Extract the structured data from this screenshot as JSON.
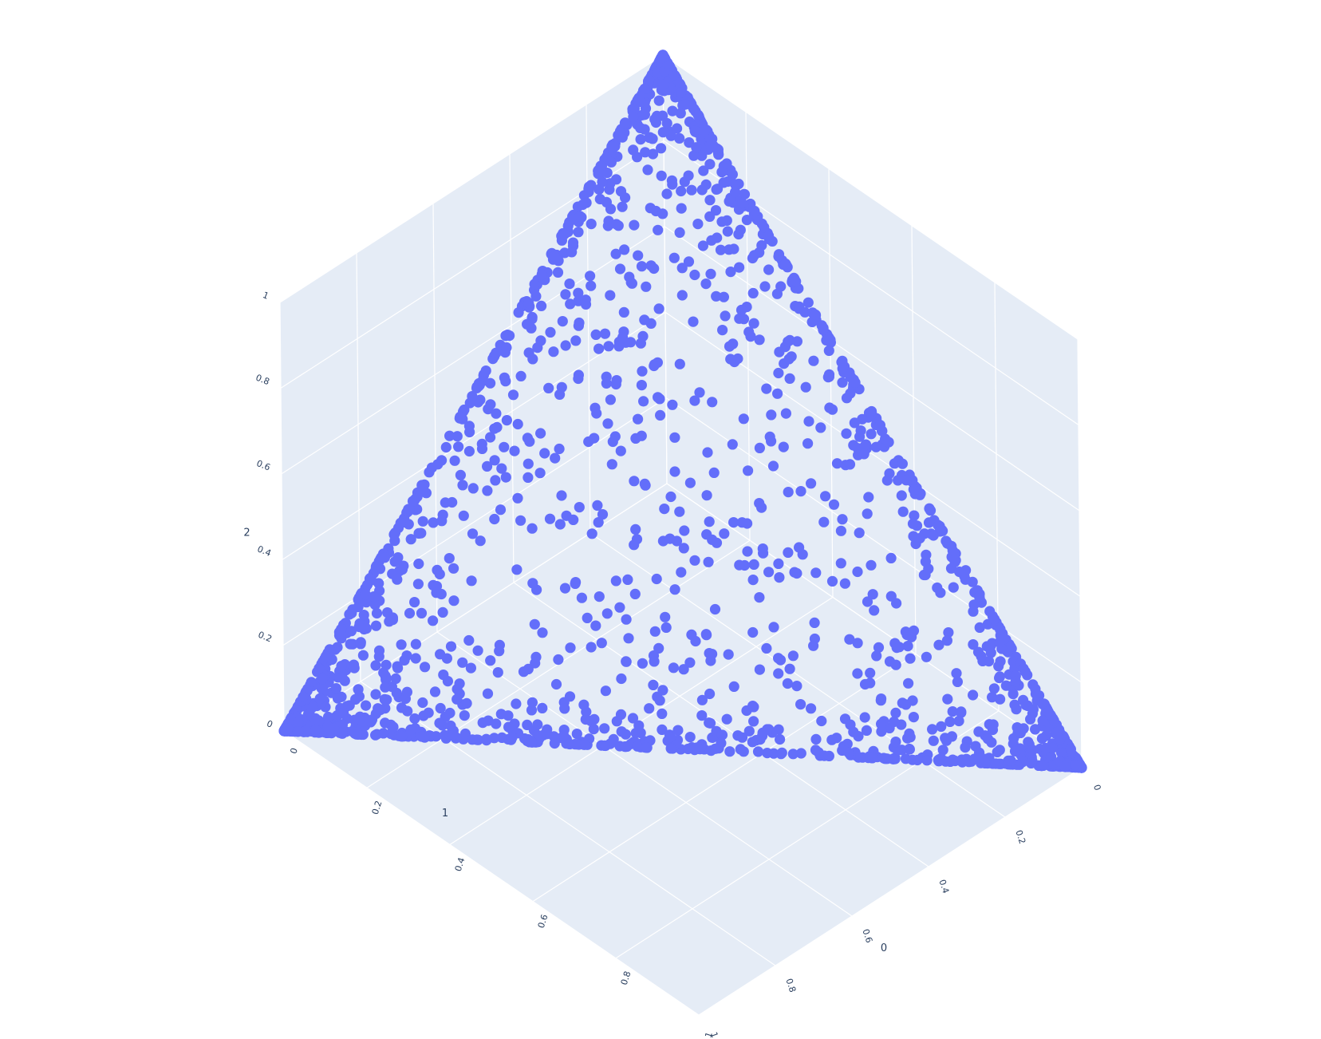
{
  "chart_data": {
    "type": "scatter",
    "subtype": "scatter3d",
    "title": "",
    "axes": {
      "x": {
        "title": "0",
        "range": [
          0,
          1
        ],
        "ticks": [
          "0",
          "0.2",
          "0.4",
          "0.6",
          "0.8",
          "1"
        ]
      },
      "y": {
        "title": "1",
        "range": [
          0,
          1
        ],
        "ticks": [
          "0",
          "0.2",
          "0.4",
          "0.6",
          "0.8",
          "1"
        ]
      },
      "z": {
        "title": "2",
        "range": [
          0,
          1
        ],
        "ticks": [
          "0",
          "0.2",
          "0.4",
          "0.6",
          "0.8",
          "1"
        ]
      }
    },
    "grid": true,
    "legend": "none",
    "marker_color": "#636efa",
    "pane_color": "#e5ecf6",
    "grid_color": "#ffffff",
    "text_color": "#2a3f5f",
    "approx_point_count": 2000,
    "distribution": "points on the simplex x+y+z=1, concentrated near the three vertices and along the edges",
    "points_sample": [
      [
        0.97,
        0.02,
        0.01
      ],
      [
        0.95,
        0.03,
        0.02
      ],
      [
        0.93,
        0.05,
        0.02
      ],
      [
        0.9,
        0.06,
        0.04
      ],
      [
        0.88,
        0.1,
        0.02
      ],
      [
        0.86,
        0.04,
        0.1
      ],
      [
        0.8,
        0.15,
        0.05
      ],
      [
        0.75,
        0.2,
        0.05
      ],
      [
        0.7,
        0.05,
        0.25
      ],
      [
        0.65,
        0.3,
        0.05
      ],
      [
        0.02,
        0.97,
        0.01
      ],
      [
        0.03,
        0.95,
        0.02
      ],
      [
        0.05,
        0.92,
        0.03
      ],
      [
        0.07,
        0.9,
        0.03
      ],
      [
        0.1,
        0.86,
        0.04
      ],
      [
        0.04,
        0.88,
        0.08
      ],
      [
        0.15,
        0.8,
        0.05
      ],
      [
        0.2,
        0.75,
        0.05
      ],
      [
        0.05,
        0.7,
        0.25
      ],
      [
        0.3,
        0.65,
        0.05
      ],
      [
        0.01,
        0.02,
        0.97
      ],
      [
        0.02,
        0.03,
        0.95
      ],
      [
        0.03,
        0.05,
        0.92
      ],
      [
        0.05,
        0.06,
        0.89
      ],
      [
        0.08,
        0.04,
        0.88
      ],
      [
        0.1,
        0.1,
        0.8
      ],
      [
        0.05,
        0.2,
        0.75
      ],
      [
        0.2,
        0.05,
        0.75
      ],
      [
        0.25,
        0.1,
        0.65
      ],
      [
        0.1,
        0.3,
        0.6
      ],
      [
        0.5,
        0.45,
        0.05
      ],
      [
        0.45,
        0.5,
        0.05
      ],
      [
        0.5,
        0.05,
        0.45
      ],
      [
        0.05,
        0.5,
        0.45
      ],
      [
        0.45,
        0.05,
        0.5
      ],
      [
        0.05,
        0.45,
        0.5
      ],
      [
        0.35,
        0.35,
        0.3
      ],
      [
        0.4,
        0.3,
        0.3
      ],
      [
        0.3,
        0.4,
        0.3
      ],
      [
        0.3,
        0.3,
        0.4
      ]
    ]
  }
}
